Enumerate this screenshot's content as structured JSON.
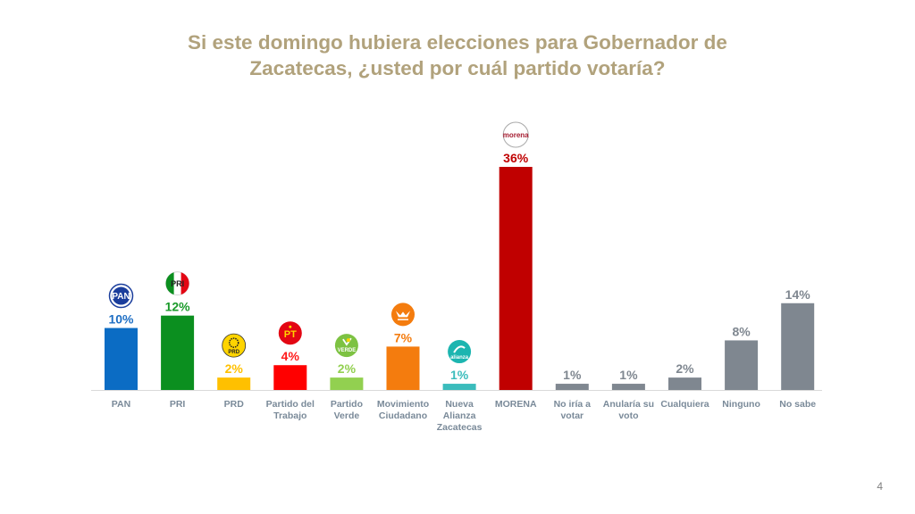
{
  "chart_data": {
    "type": "bar",
    "title": "Si este domingo hubiera elecciones para Gobernador de Zacatecas, ¿usted por cuál partido votaría?",
    "xlabel": "",
    "ylabel": "",
    "ylim": [
      0,
      36
    ],
    "grid": false,
    "legend": "none",
    "unit": "%",
    "categories": [
      [
        "PAN"
      ],
      [
        "PRI"
      ],
      [
        "PRD"
      ],
      [
        "Partido del",
        "Trabajo"
      ],
      [
        "Partido",
        "Verde"
      ],
      [
        "Movimiento",
        "Ciudadano"
      ],
      [
        "Nueva",
        "Alianza",
        "Zacatecas"
      ],
      [
        "MORENA"
      ],
      [
        "No iría a",
        "votar"
      ],
      [
        "Anularía su",
        "voto"
      ],
      [
        "Cualquiera"
      ],
      [
        "Ninguno"
      ],
      [
        "No sabe"
      ]
    ],
    "values": [
      10,
      12,
      2,
      4,
      2,
      7,
      1,
      36,
      1,
      1,
      2,
      8,
      14
    ],
    "data_labels": [
      "10%",
      "12%",
      "2%",
      "4%",
      "2%",
      "7%",
      "1%",
      "36%",
      "1%",
      "1%",
      "2%",
      "8%",
      "14%"
    ],
    "colors": [
      "#0b6cc4",
      "#0b8f1f",
      "#ffc000",
      "#ff0000",
      "#92d050",
      "#f47c0e",
      "#3bbcbc",
      "#c00000",
      "#7f8790",
      "#7f8790",
      "#7f8790",
      "#7f8790",
      "#7f8790"
    ],
    "label_colors": [
      "#1f6fc4",
      "#1a9a2a",
      "#ffc000",
      "#ff1a1a",
      "#92d050",
      "#f47c0e",
      "#3bbcbc",
      "#c00000",
      "#7f8790",
      "#7f8790",
      "#7f8790",
      "#7f8790",
      "#7f8790"
    ],
    "logos": [
      "pan-logo-icon",
      "pri-logo-icon",
      "prd-logo-icon",
      "pt-logo-icon",
      "verde-logo-icon",
      "mc-logo-icon",
      "alianza-logo-icon",
      "morena-logo-icon",
      null,
      null,
      null,
      null,
      null
    ],
    "logo_texts": [
      "PAN",
      "PRI",
      "PRD",
      "PT",
      "VERDE",
      "",
      "alianza",
      "morena",
      null,
      null,
      null,
      null,
      null
    ]
  },
  "page": {
    "title": "Si este domingo hubiera elecciones para Gobernador de Zacatecas, ¿usted por cuál partido votaría?",
    "page_number": "4"
  }
}
